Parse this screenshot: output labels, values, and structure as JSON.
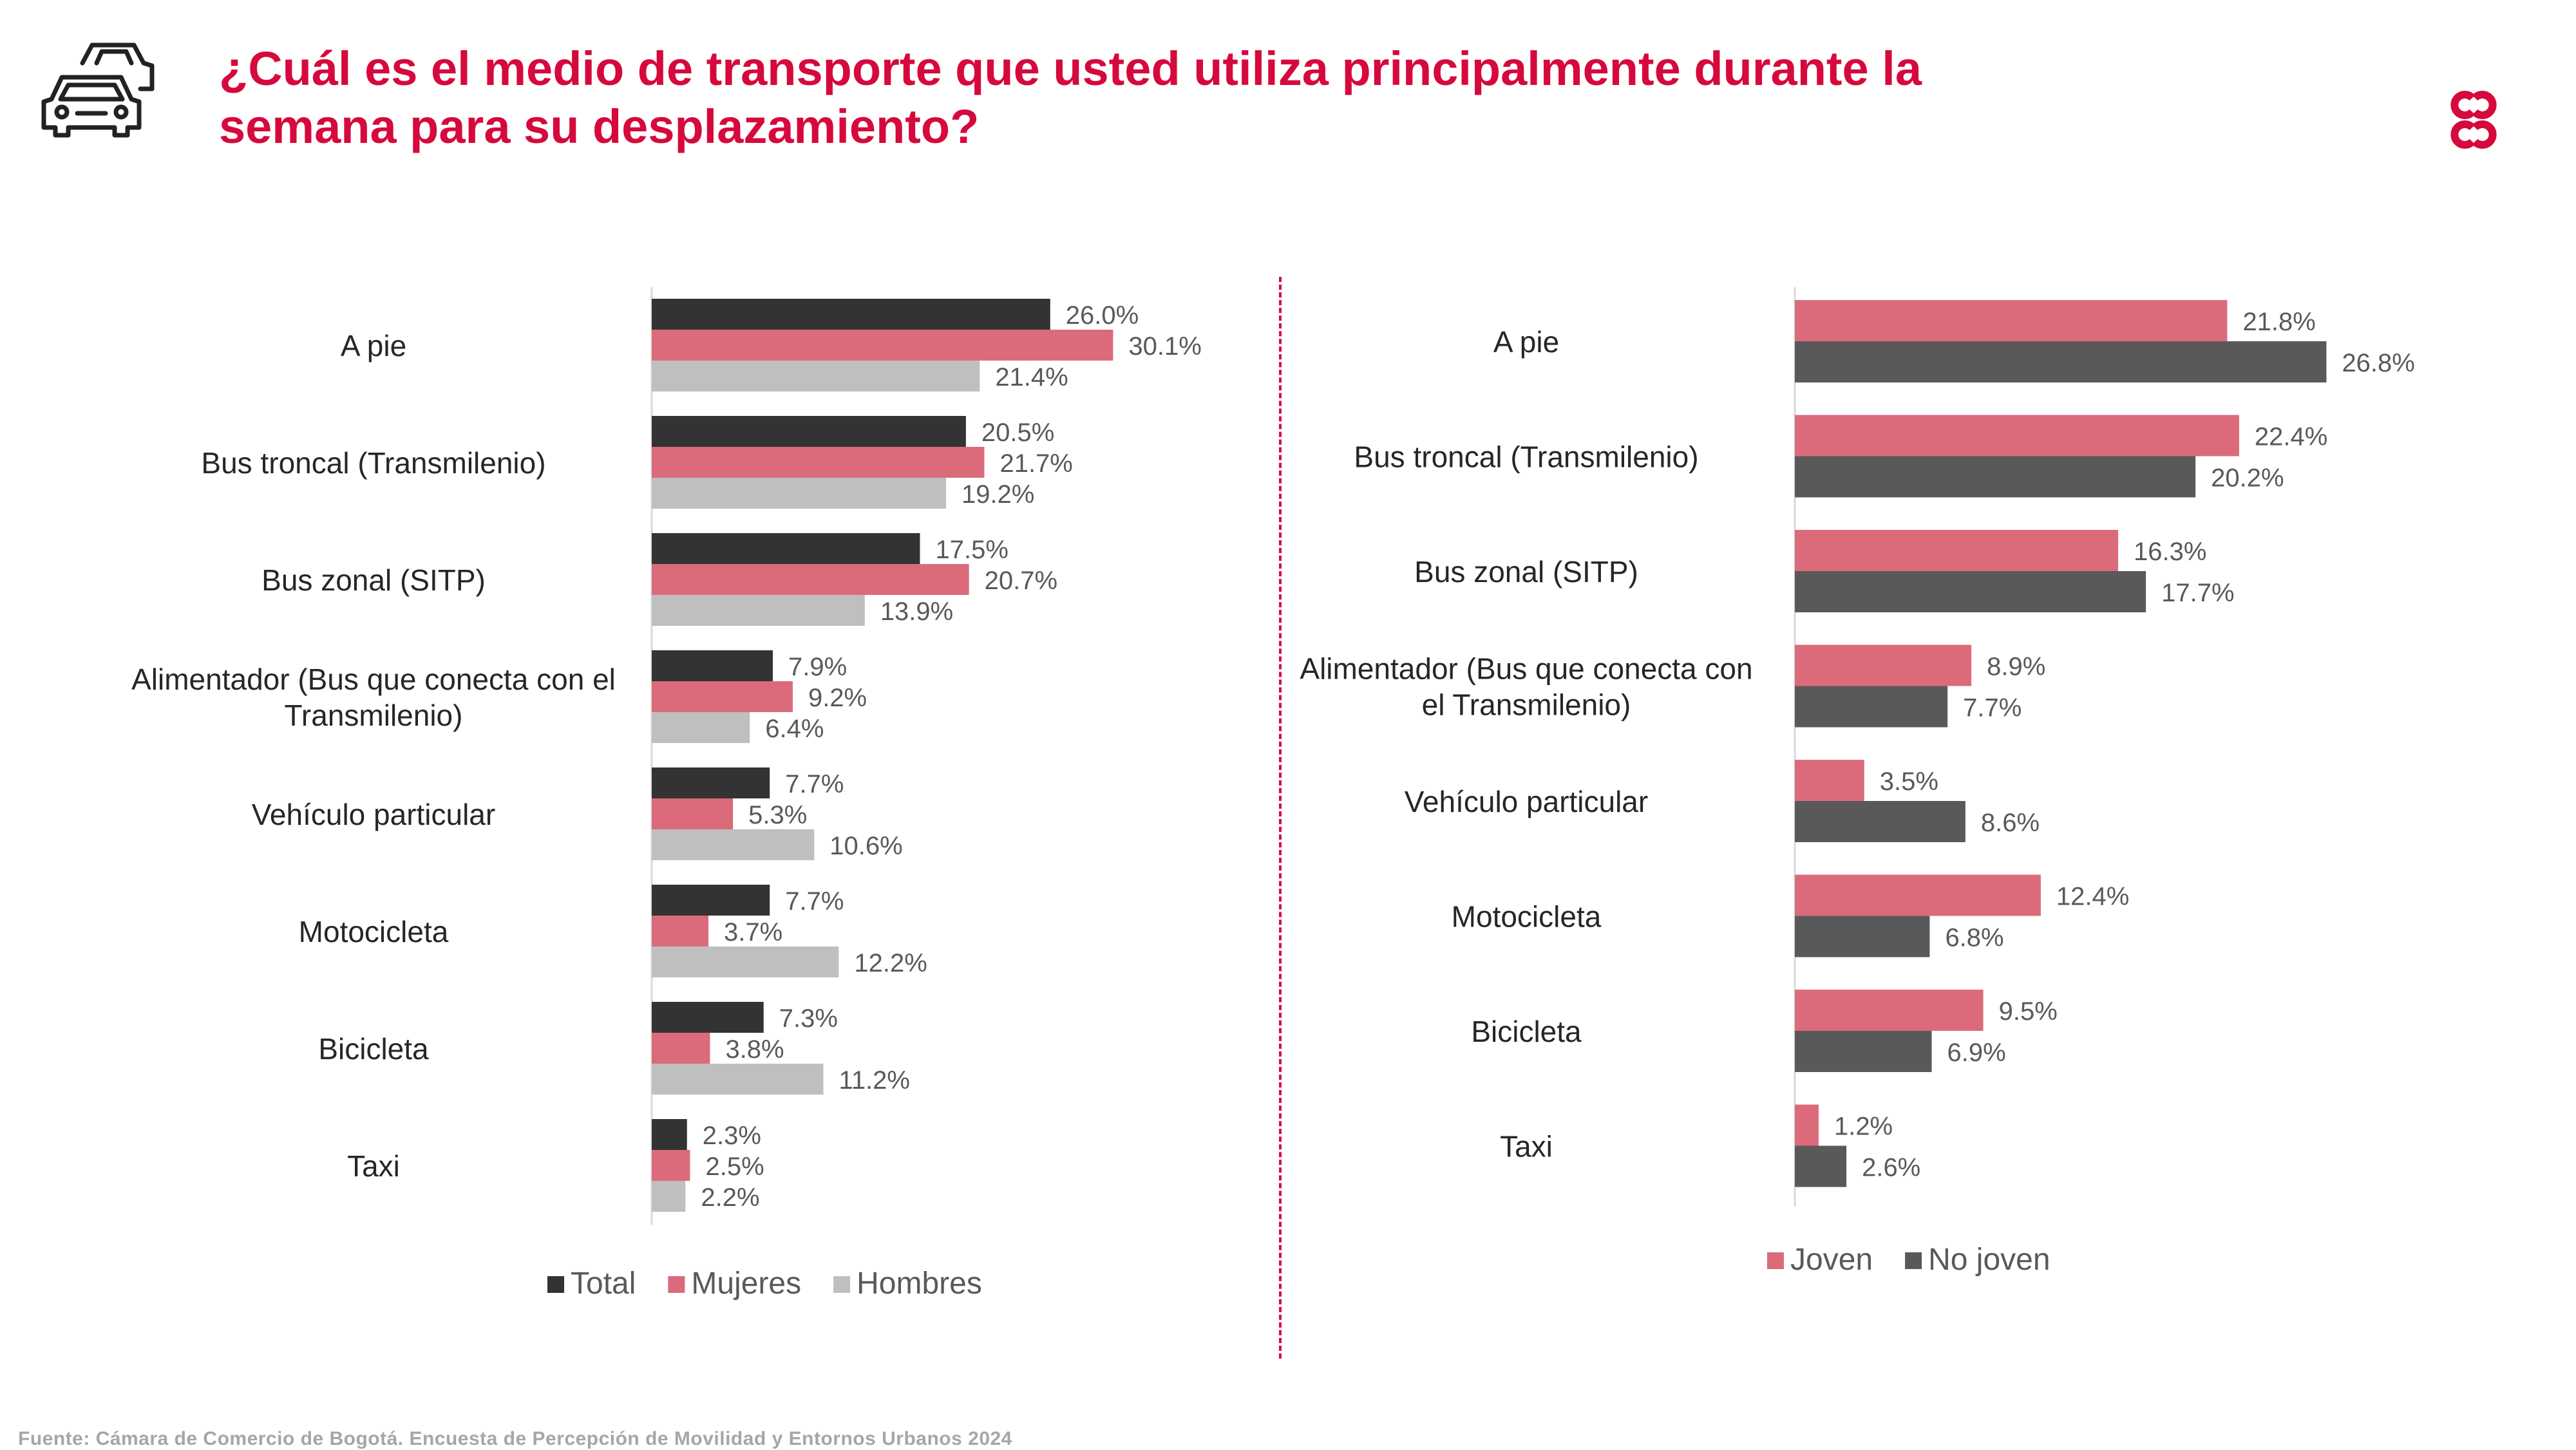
{
  "header": {
    "title_line1": "¿Cuál es el medio de transporte que usted utiliza principalmente durante la",
    "title_line2": "semana para su desplazamiento?",
    "icon": "cars-icon",
    "logo": "ccb-logo-icon",
    "accent_color": "#d6093c"
  },
  "source": "Fuente: Cámara de Comercio de Bogotá. Encuesta de Percepción de Movilidad y Entornos Urbanos 2024",
  "chart_data": [
    {
      "type": "bar",
      "orientation": "horizontal",
      "categories": [
        [
          "A pie"
        ],
        [
          "Bus troncal (Transmilenio)"
        ],
        [
          "Bus zonal (SITP)"
        ],
        [
          "Alimentador (Bus que conecta con el",
          "Transmilenio)"
        ],
        [
          "Vehículo particular"
        ],
        [
          "Motocicleta"
        ],
        [
          "Bicicleta"
        ],
        [
          "Taxi"
        ]
      ],
      "series": [
        {
          "name": "Total",
          "color": "#333333",
          "values": [
            26.0,
            20.5,
            17.5,
            7.9,
            7.7,
            7.7,
            7.3,
            2.3
          ]
        },
        {
          "name": "Mujeres",
          "color": "#db6b7a",
          "values": [
            30.1,
            21.7,
            20.7,
            9.2,
            5.3,
            3.7,
            3.8,
            2.5
          ]
        },
        {
          "name": "Hombres",
          "color": "#bfbfbf",
          "values": [
            21.4,
            19.2,
            13.9,
            6.4,
            10.6,
            12.2,
            11.2,
            2.2
          ]
        }
      ],
      "value_suffix": "%",
      "legend": "bottom"
    },
    {
      "type": "bar",
      "orientation": "horizontal",
      "categories": [
        [
          "A pie"
        ],
        [
          "Bus troncal (Transmilenio)"
        ],
        [
          "Bus zonal (SITP)"
        ],
        [
          "Alimentador (Bus que conecta con",
          "el Transmilenio)"
        ],
        [
          "Vehículo particular"
        ],
        [
          "Motocicleta"
        ],
        [
          "Bicicleta"
        ],
        [
          "Taxi"
        ]
      ],
      "series": [
        {
          "name": "Joven",
          "color": "#db6b7a",
          "values": [
            21.8,
            22.4,
            16.3,
            8.9,
            3.5,
            12.4,
            9.5,
            1.2
          ]
        },
        {
          "name": "No joven",
          "color": "#595959",
          "values": [
            26.8,
            20.2,
            17.7,
            7.7,
            8.6,
            6.8,
            6.9,
            2.6
          ]
        }
      ],
      "value_suffix": "%",
      "legend": "bottom"
    }
  ]
}
